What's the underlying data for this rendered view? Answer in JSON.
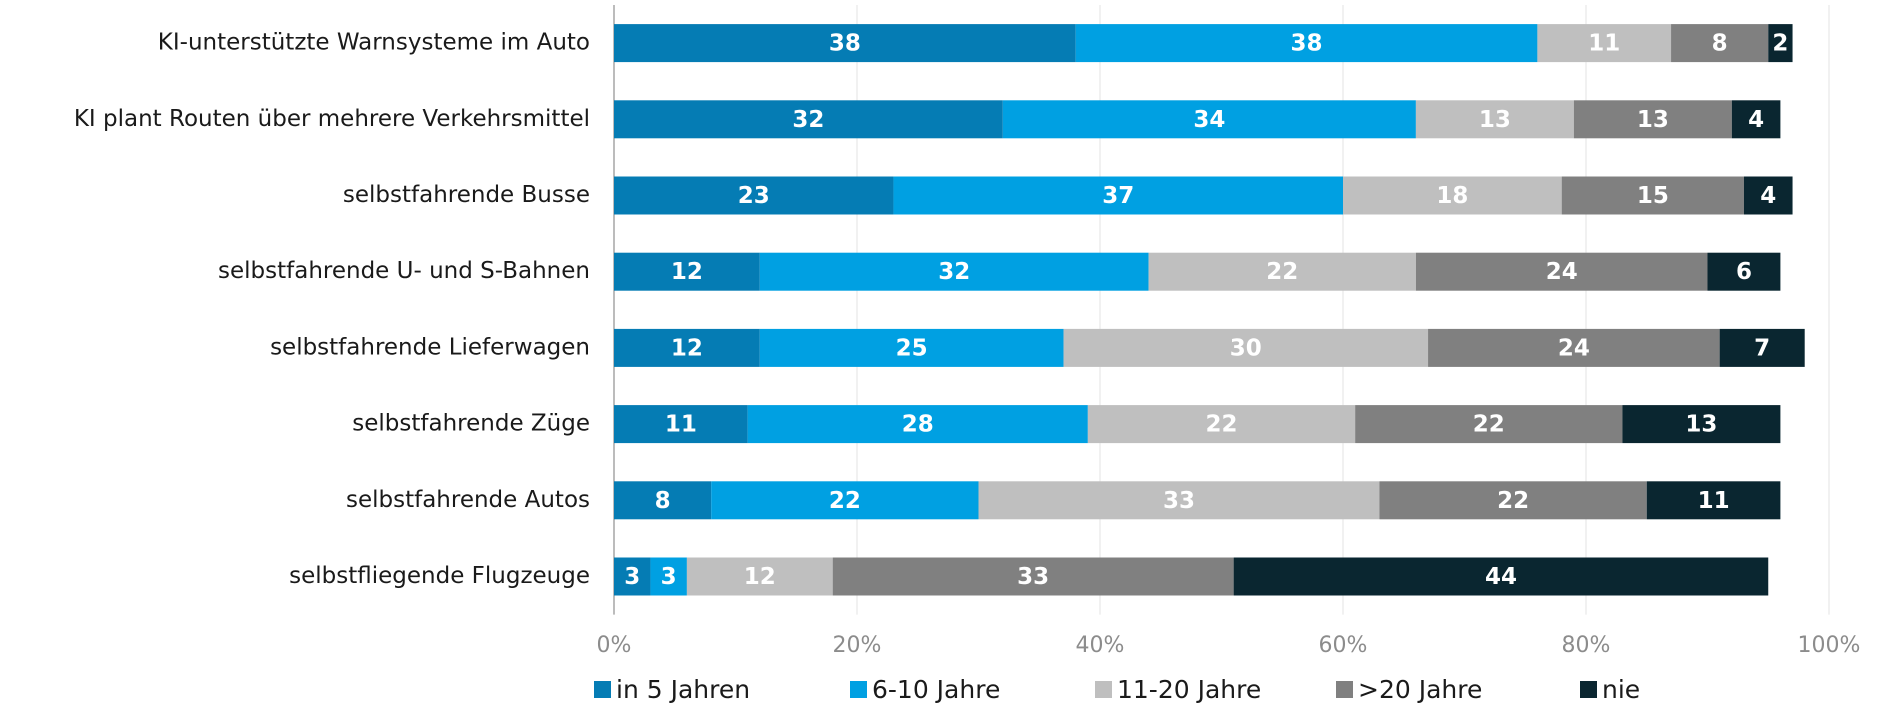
{
  "chart_data": {
    "type": "stacked-bar-horizontal",
    "categories": [
      "KI-unterstützte Warnsysteme im Auto",
      "KI plant Routen über mehrere Verkehrsmittel",
      "selbstfahrende Busse",
      "selbstfahrende U- und S-Bahnen",
      "selbstfahrende Lieferwagen",
      "selbstfahrende Züge",
      "selbstfahrende Autos",
      "selbstfliegende Flugzeuge"
    ],
    "series": [
      {
        "name": "in 5 Jahren",
        "color": "#057cb4",
        "values": [
          38,
          32,
          23,
          12,
          12,
          11,
          8,
          3
        ]
      },
      {
        "name": "6-10 Jahre",
        "color": "#00a0e2",
        "values": [
          38,
          34,
          37,
          32,
          25,
          28,
          22,
          3
        ]
      },
      {
        "name": "11-20 Jahre",
        "color": "#bfbfbf",
        "values": [
          11,
          13,
          18,
          22,
          30,
          22,
          33,
          12
        ]
      },
      {
        "name": ">20 Jahre",
        "color": "#808080",
        "values": [
          8,
          13,
          15,
          24,
          24,
          22,
          22,
          33
        ]
      },
      {
        "name": "nie",
        "color": "#0a2630",
        "values": [
          2,
          4,
          4,
          6,
          7,
          13,
          11,
          44
        ]
      }
    ],
    "xlim": [
      0,
      100
    ],
    "xticks": [
      {
        "value": 0,
        "label": "0%"
      },
      {
        "value": 20,
        "label": "20%"
      },
      {
        "value": 40,
        "label": "40%"
      },
      {
        "value": 60,
        "label": "60%"
      },
      {
        "value": 80,
        "label": "80%"
      },
      {
        "value": 100,
        "label": "100%"
      }
    ],
    "grid": true
  }
}
